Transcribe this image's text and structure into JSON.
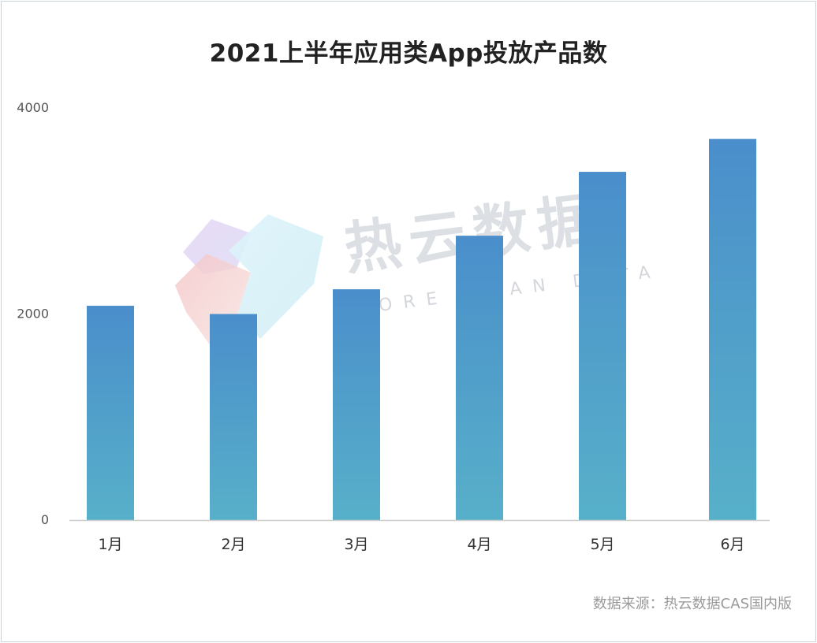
{
  "chart_data": {
    "type": "bar",
    "title": "2021上半年应用类App投放产品数",
    "categories": [
      "1月",
      "2月",
      "3月",
      "4月",
      "5月",
      "6月"
    ],
    "values": [
      2080,
      2000,
      2240,
      2760,
      3380,
      3700
    ],
    "ylim": [
      0,
      4000
    ],
    "yticks": [
      "0",
      "2000",
      "4000"
    ],
    "xlabel": "",
    "ylabel": "",
    "grid": false,
    "colors": {
      "bar_top": "#4a8ecb",
      "bar_bottom": "#57b0c9",
      "axis": "#cccccc"
    }
  },
  "watermark": {
    "main": "热云数据",
    "sub": "MORE THAN DATA"
  },
  "source": "数据来源：热云数据CAS国内版"
}
